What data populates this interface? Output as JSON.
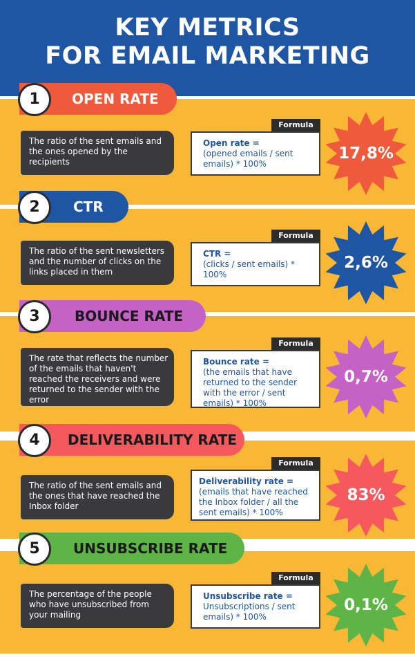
{
  "header": {
    "line1": "KEY METRICS",
    "line2": "FOR EMAIL MARKETING"
  },
  "formula_label": "Formula",
  "metrics": [
    {
      "number": "1",
      "title": "OPEN RATE",
      "pill_color": "#f05a3c",
      "star_color": "#f05a3c",
      "description": "The ratio of the sent emails and the ones opened by the recipients",
      "formula_title": "Open rate =",
      "formula_body": "(opened emails / sent emails) * 100%",
      "value": "17,8%"
    },
    {
      "number": "2",
      "title": "CTR",
      "pill_color": "#1e56a4",
      "star_color": "#1e56a4",
      "description": "The ratio of the sent newsletters and the number of clicks on the links placed in them",
      "formula_title": "CTR =",
      "formula_body": "(clicks / sent emails) * 100%",
      "value": "2,6%"
    },
    {
      "number": "3",
      "title": "BOUNCE RATE",
      "pill_color": "#c462c5",
      "star_color": "#c462c5",
      "description": "The rate that reflects the number of the emails that haven't reached the receivers and were returned to the sender with the error",
      "formula_title": "Bounce rate =",
      "formula_body": "(the emails that have returned to the sender with the error / sent emails) * 100%",
      "value": "0,7%"
    },
    {
      "number": "4",
      "title": "DELIVERABILITY RATE",
      "pill_color": "#f5595e",
      "star_color": "#f5595e",
      "description": "The ratio of the sent emails and the ones that have reached the Inbox folder",
      "formula_title": "Deliverability rate =",
      "formula_body": "(emails that have reached the Inbox folder / all the sent emails) * 100%",
      "value": "83%"
    },
    {
      "number": "5",
      "title": "UNSUBSCRIBE RATE",
      "pill_color": "#5fb448",
      "star_color": "#5fb448",
      "description": "The percentage of the people who have unsubscribed from your mailing",
      "formula_title": "Unsubscribe rate =",
      "formula_body": "Unsubscriptions / sent emails) * 100%",
      "value": "0,1%"
    }
  ]
}
